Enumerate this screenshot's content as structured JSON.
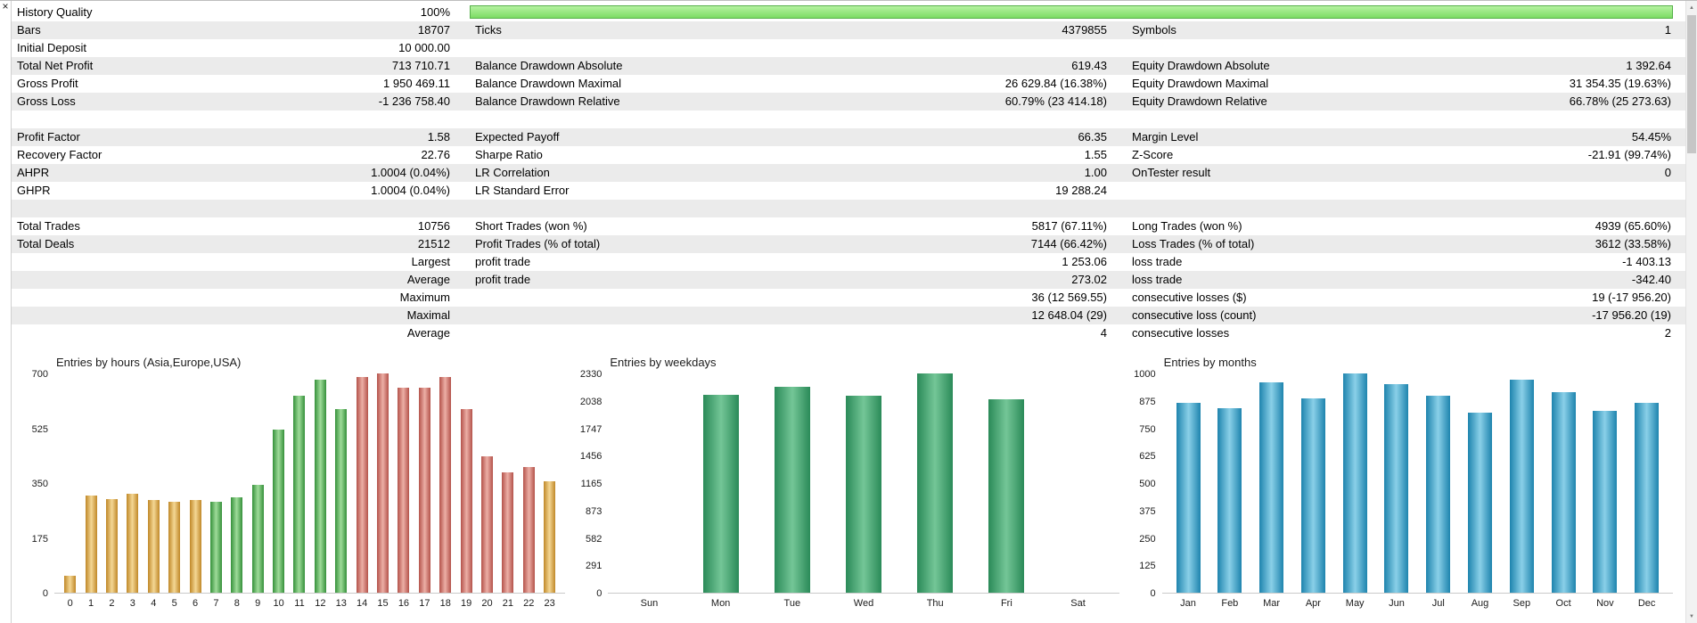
{
  "window": {
    "close_glyph": "×"
  },
  "scrollbar": {
    "up_glyph": "▲",
    "down_glyph": "▼"
  },
  "palette": {
    "row_alt": "#ebebeb",
    "quality_border": "#57b04b",
    "quality_light": "#b5f2a1",
    "quality_dark": "#7cdc64",
    "asia": [
      "#c08828",
      "#f4d794"
    ],
    "europe": [
      "#35903a",
      "#9fdc9a"
    ],
    "usa": [
      "#b4524a",
      "#ecafa6"
    ],
    "weekday": [
      "#2a8a58",
      "#74c697"
    ],
    "month": [
      "#1e84ae",
      "#8ad0e8"
    ]
  },
  "table": {
    "rows": [
      {
        "type": "quality",
        "label": "History Quality",
        "value": "100%",
        "bar_percent": 100
      },
      {
        "cells": [
          "Bars",
          "18707",
          "Ticks",
          "4379855",
          "Symbols",
          "1"
        ]
      },
      {
        "cells": [
          "Initial Deposit",
          "10 000.00",
          "",
          "",
          "",
          ""
        ]
      },
      {
        "cells": [
          "Total Net Profit",
          "713 710.71",
          "Balance Drawdown Absolute",
          "619.43",
          "Equity Drawdown Absolute",
          "1 392.64"
        ]
      },
      {
        "cells": [
          "Gross Profit",
          "1 950 469.11",
          "Balance Drawdown Maximal",
          "26 629.84 (16.38%)",
          "Equity Drawdown Maximal",
          "31 354.35 (19.63%)"
        ]
      },
      {
        "cells": [
          "Gross Loss",
          "-1 236 758.40",
          "Balance Drawdown Relative",
          "60.79% (23 414.18)",
          "Equity Drawdown Relative",
          "66.78% (25 273.63)"
        ]
      },
      {
        "cells": [
          "",
          "",
          "",
          "",
          "",
          ""
        ]
      },
      {
        "cells": [
          "Profit Factor",
          "1.58",
          "Expected Payoff",
          "66.35",
          "Margin Level",
          "54.45%"
        ]
      },
      {
        "cells": [
          "Recovery Factor",
          "22.76",
          "Sharpe Ratio",
          "1.55",
          "Z-Score",
          "-21.91 (99.74%)"
        ]
      },
      {
        "cells": [
          "AHPR",
          "1.0004 (0.04%)",
          "LR Correlation",
          "1.00",
          "OnTester result",
          "0"
        ]
      },
      {
        "cells": [
          "GHPR",
          "1.0004 (0.04%)",
          "LR Standard Error",
          "19 288.24",
          "",
          ""
        ]
      },
      {
        "cells": [
          "",
          "",
          "",
          "",
          "",
          ""
        ]
      },
      {
        "cells": [
          "Total Trades",
          "10756",
          "Short Trades (won %)",
          "5817 (67.11%)",
          "Long Trades (won %)",
          "4939 (65.60%)"
        ]
      },
      {
        "cells": [
          "Total Deals",
          "21512",
          "Profit Trades (% of total)",
          "7144 (66.42%)",
          "Loss Trades (% of total)",
          "3612 (33.58%)"
        ]
      },
      {
        "cells": [
          "",
          "Largest",
          "profit trade",
          "1 253.06",
          "loss trade",
          "-1 403.13"
        ]
      },
      {
        "cells": [
          "",
          "Average",
          "profit trade",
          "273.02",
          "loss trade",
          "-342.40"
        ]
      },
      {
        "cells": [
          "",
          "Maximum",
          "",
          "36 (12 569.55)",
          "consecutive losses ($)",
          "19 (-17 956.20)"
        ]
      },
      {
        "cells": [
          "",
          "Maximal",
          "",
          "12 648.04 (29)",
          "consecutive loss (count)",
          "-17 956.20 (19)"
        ]
      },
      {
        "cells": [
          "",
          "Average",
          "",
          "4",
          "consecutive losses",
          "2"
        ]
      }
    ]
  },
  "chart_data": [
    {
      "id": "entries-by-hours",
      "type": "bar",
      "title": "Entries by hours (Asia,Europe,USA)",
      "categories": [
        "0",
        "1",
        "2",
        "3",
        "4",
        "5",
        "6",
        "7",
        "8",
        "9",
        "10",
        "11",
        "12",
        "13",
        "14",
        "15",
        "16",
        "17",
        "18",
        "19",
        "20",
        "21",
        "22",
        "23"
      ],
      "values": [
        55,
        310,
        300,
        315,
        295,
        290,
        295,
        290,
        305,
        345,
        520,
        630,
        680,
        585,
        690,
        700,
        655,
        655,
        690,
        585,
        435,
        385,
        400,
        355
      ],
      "bar_colors": [
        "asia",
        "asia",
        "asia",
        "asia",
        "asia",
        "asia",
        "asia",
        "europe",
        "europe",
        "europe",
        "europe",
        "europe",
        "europe",
        "europe",
        "usa",
        "usa",
        "usa",
        "usa",
        "usa",
        "usa",
        "usa",
        "usa",
        "usa",
        "asia"
      ],
      "ylim": [
        0,
        700
      ],
      "yticks": [
        0,
        175,
        350,
        525,
        700
      ],
      "legend_position": "none",
      "grid": false
    },
    {
      "id": "entries-by-weekdays",
      "type": "bar",
      "title": "Entries by weekdays",
      "categories": [
        "Sun",
        "Mon",
        "Tue",
        "Wed",
        "Thu",
        "Fri",
        "Sat"
      ],
      "values": [
        0,
        2100,
        2190,
        2090,
        2330,
        2060,
        0
      ],
      "bar_colors": "weekday",
      "ylim": [
        0,
        2330
      ],
      "yticks": [
        0,
        291,
        582,
        873,
        1165,
        1456,
        1747,
        2038,
        2330
      ],
      "legend_position": "none",
      "grid": false
    },
    {
      "id": "entries-by-months",
      "type": "bar",
      "title": "Entries by months",
      "categories": [
        "Jan",
        "Feb",
        "Mar",
        "Apr",
        "May",
        "Jun",
        "Jul",
        "Aug",
        "Sep",
        "Oct",
        "Nov",
        "Dec"
      ],
      "values": [
        865,
        840,
        960,
        885,
        1000,
        950,
        900,
        820,
        970,
        915,
        830,
        865
      ],
      "bar_colors": "month",
      "ylim": [
        0,
        1000
      ],
      "yticks": [
        0,
        125,
        250,
        375,
        500,
        625,
        750,
        875,
        1000
      ],
      "legend_position": "none",
      "grid": false
    }
  ]
}
